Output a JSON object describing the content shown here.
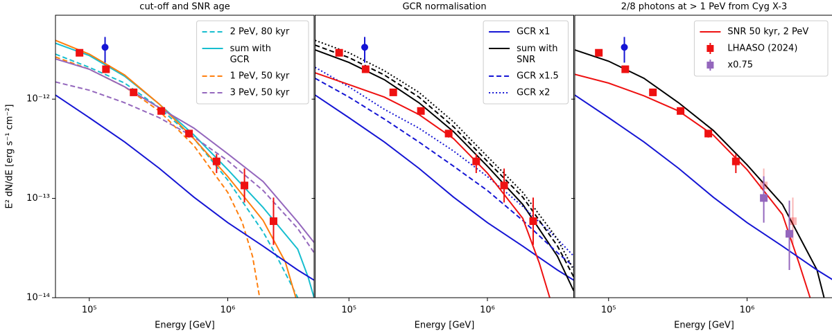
{
  "chart_data": [
    {
      "type": "line",
      "title": "cut-off and SNR age",
      "xlabel": "Energy [GeV]",
      "ylabel": "E² dN/dE [erg s⁻¹ cm⁻²]",
      "xlog": true,
      "ylog": true,
      "xlim": [
        57000,
        4200000
      ],
      "ylim": [
        1e-14,
        7e-12
      ],
      "xticks": [
        {
          "value": 100000,
          "label": "10⁵"
        },
        {
          "value": 1000000,
          "label": "10⁶"
        }
      ],
      "yticks": [
        {
          "value": 1e-14,
          "label": "10⁻¹⁴"
        },
        {
          "value": 1e-13,
          "label": "10⁻¹³"
        },
        {
          "value": 1e-12,
          "label": "10⁻¹²"
        }
      ],
      "legend": "upper right",
      "series": [
        {
          "name": "2 PeV, 80 kyr",
          "color": "#17becf",
          "style": "dashed",
          "x": [
            57000,
            100000,
            180000,
            320000,
            570000,
            1000000,
            1800000,
            2260000,
            2850000,
            3200000
          ],
          "values": [
            2.84e-12,
            2.09e-12,
            1.45e-12,
            8.2e-13,
            4e-13,
            1.53e-13,
            4.6e-14,
            2.6e-14,
            1.38e-14,
            1e-14
          ]
        },
        {
          "name": "sum with\nGCR",
          "color": "#17becf",
          "style": "solid",
          "x": [
            57000,
            100000,
            180000,
            320000,
            570000,
            1000000,
            1800000,
            3200000,
            3800000,
            4200000
          ],
          "values": [
            3.66e-12,
            2.75e-12,
            1.7e-12,
            8.9e-13,
            4.35e-13,
            1.95e-13,
            8.1e-14,
            3.08e-14,
            1.62e-14,
            1e-14
          ]
        },
        {
          "name": "1 PeV, 50 kyr",
          "color": "#ff7f0e",
          "style": "dashed",
          "x": [
            57000,
            100000,
            180000,
            320000,
            570000,
            1000000,
            1270000,
            1510000,
            1700000
          ],
          "values": [
            2.66e-12,
            2e-12,
            1.33e-12,
            7.6e-13,
            3.4e-13,
            1.15e-13,
            5.8e-14,
            2.6e-14,
            1e-14
          ]
        },
        {
          "name": "3 PeV, 50 kyr",
          "color": "#9467bd",
          "style": "dashed",
          "x": [
            57000,
            100000,
            180000,
            320000,
            570000,
            1000000,
            1800000,
            3200000,
            4200000
          ],
          "values": [
            1.49e-12,
            1.23e-12,
            9.2e-13,
            6.5e-13,
            4.14e-13,
            2.4e-13,
            1.2e-13,
            4.97e-14,
            2.84e-14
          ]
        },
        {
          "color": "#ff7f0e",
          "style": "solid",
          "x": [
            57000,
            100000,
            180000,
            320000,
            570000,
            1000000,
            1800000,
            2600000,
            3100000
          ],
          "values": [
            3.91e-12,
            2.84e-12,
            1.75e-12,
            8.9e-13,
            4e-13,
            1.66e-13,
            6e-14,
            2.3e-14,
            1e-14
          ]
        },
        {
          "color": "#9467bd",
          "style": "solid",
          "x": [
            57000,
            100000,
            180000,
            320000,
            570000,
            1000000,
            1800000,
            3200000,
            4200000
          ],
          "values": [
            2.54e-12,
            2e-12,
            1.33e-12,
            8.2e-13,
            5.1e-13,
            2.81e-13,
            1.48e-13,
            5.8e-14,
            3.6e-14
          ]
        },
        {
          "color": "#1515d4",
          "style": "solid",
          "x": [
            57000,
            100000,
            180000,
            320000,
            570000,
            1000000,
            1800000,
            3200000,
            4200000
          ],
          "values": [
            1.1e-12,
            6.5e-13,
            3.7e-13,
            2.01e-13,
            1.03e-13,
            5.7e-14,
            3.3e-14,
            1.9e-14,
            1.5e-14
          ]
        }
      ],
      "points": [
        {
          "color": "#ee1111",
          "marker": "square",
          "x": [
            85000,
            132000,
            209000,
            331000,
            525000,
            830000,
            1320000,
            2140000
          ],
          "values": [
            2.93e-12,
            2e-12,
            1.17e-12,
            7.6e-13,
            4.5e-13,
            2.36e-13,
            1.35e-13,
            5.9e-14
          ],
          "errors_low": [
            1.5e-13,
            1e-13,
            6e-14,
            4e-14,
            4e-14,
            5.6e-14,
            4.4e-14,
            2.5e-14
          ],
          "errors_high": [
            1.5e-13,
            1e-13,
            6e-14,
            4e-14,
            4e-14,
            4.4e-14,
            6.5e-14,
            4.3e-14
          ]
        },
        {
          "color": "#1515d4",
          "marker": "circle",
          "x": [
            130000
          ],
          "values": [
            3.33e-12
          ],
          "errors_low": [
            1e-12
          ],
          "errors_high": [
            9e-13
          ]
        }
      ]
    },
    {
      "type": "line",
      "title": "GCR normalisation",
      "xlabel": "Energy [GeV]",
      "xlog": true,
      "ylog": true,
      "xlim": [
        57000,
        4200000
      ],
      "ylim": [
        1e-14,
        7e-12
      ],
      "xticks": [
        {
          "value": 100000,
          "label": "10⁵"
        },
        {
          "value": 1000000,
          "label": "10⁶"
        }
      ],
      "legend": "upper right",
      "series": [
        {
          "name": "GCR x1",
          "color": "#1515d4",
          "style": "solid",
          "x": [
            57000,
            100000,
            180000,
            320000,
            570000,
            1000000,
            1800000,
            3200000,
            4200000
          ],
          "values": [
            1.1e-12,
            6.5e-13,
            3.7e-13,
            2.01e-13,
            1.03e-13,
            5.7e-14,
            3.3e-14,
            1.9e-14,
            1.5e-14
          ]
        },
        {
          "name": "sum with\nSNR",
          "color": "#000000",
          "style": "solid",
          "x": [
            57000,
            100000,
            180000,
            320000,
            570000,
            1000000,
            1800000,
            3200000,
            4200000
          ],
          "values": [
            3.13e-12,
            2.34e-12,
            1.57e-12,
            9.2e-13,
            4.7e-13,
            2.11e-13,
            8.7e-14,
            2.62e-14,
            1.17e-14
          ]
        },
        {
          "name": "GCR x1.5",
          "color": "#1515d4",
          "style": "dashed",
          "x": [
            57000,
            100000,
            180000,
            320000,
            570000,
            1000000,
            1800000,
            3200000,
            4200000
          ],
          "values": [
            1.62e-12,
            1.05e-12,
            6.3e-13,
            3.7e-13,
            2.11e-13,
            1.2e-13,
            6e-14,
            2.84e-14,
            2.06e-14
          ]
        },
        {
          "name": "GCR x2",
          "color": "#1515d4",
          "style": "dotted",
          "x": [
            57000,
            100000,
            180000,
            320000,
            570000,
            1000000,
            1800000,
            3200000,
            4200000
          ],
          "values": [
            2.09e-12,
            1.33e-12,
            7.9e-13,
            5.1e-13,
            3e-13,
            1.66e-13,
            8.3e-14,
            3.9e-14,
            2.62e-14
          ]
        },
        {
          "color": "#000000",
          "style": "dashed",
          "x": [
            57000,
            100000,
            180000,
            320000,
            570000,
            1000000,
            1800000,
            3200000,
            4200000
          ],
          "values": [
            3.5e-12,
            2.62e-12,
            1.75e-12,
            1.05e-12,
            5.26e-13,
            2.36e-13,
            1.03e-13,
            3.33e-14,
            1.62e-14
          ]
        },
        {
          "color": "#000000",
          "style": "dotted",
          "x": [
            57000,
            100000,
            180000,
            320000,
            570000,
            1000000,
            1800000,
            3200000,
            4200000
          ],
          "values": [
            3.91e-12,
            2.93e-12,
            1.93e-12,
            1.17e-12,
            5.9e-13,
            2.64e-13,
            1.15e-13,
            3.9e-14,
            1.9e-14
          ]
        },
        {
          "color": "#ee1111",
          "style": "solid",
          "x": [
            57000,
            100000,
            180000,
            320000,
            570000,
            1000000,
            1800000,
            2370000,
            2820000
          ],
          "values": [
            1.84e-12,
            1.4e-12,
            1.05e-12,
            7e-13,
            4e-13,
            1.8e-13,
            6.3e-14,
            2.23e-14,
            1e-14
          ]
        }
      ],
      "points": [
        {
          "color": "#ee1111",
          "marker": "square",
          "x": [
            85000,
            132000,
            209000,
            331000,
            525000,
            830000,
            1320000,
            2140000
          ],
          "values": [
            2.93e-12,
            2e-12,
            1.17e-12,
            7.6e-13,
            4.5e-13,
            2.36e-13,
            1.35e-13,
            5.9e-14
          ],
          "errors_low": [
            1.5e-13,
            1e-13,
            6e-14,
            4e-14,
            4e-14,
            5.6e-14,
            4.4e-14,
            2.5e-14
          ],
          "errors_high": [
            1.5e-13,
            1e-13,
            6e-14,
            4e-14,
            4e-14,
            4.4e-14,
            6.5e-14,
            4.3e-14
          ]
        },
        {
          "color": "#1515d4",
          "marker": "circle",
          "x": [
            130000
          ],
          "values": [
            3.33e-12
          ],
          "errors_low": [
            1e-12
          ],
          "errors_high": [
            9e-13
          ]
        }
      ]
    },
    {
      "type": "line",
      "title": "2/8 photons at > 1 PeV from Cyg X-3",
      "xlabel": "Energy [GeV]",
      "xlog": true,
      "ylog": true,
      "xlim": [
        57000,
        4200000
      ],
      "ylim": [
        1e-14,
        7e-12
      ],
      "xticks": [
        {
          "value": 100000,
          "label": "10⁵"
        },
        {
          "value": 1000000,
          "label": "10⁶"
        }
      ],
      "legend": "upper right",
      "series": [
        {
          "name": "SNR 50 kyr, 2 PeV",
          "color": "#ee1111",
          "style": "solid",
          "x": [
            57000,
            100000,
            180000,
            320000,
            570000,
            1000000,
            1800000,
            2370000,
            2850000
          ],
          "values": [
            1.78e-12,
            1.45e-12,
            1.08e-12,
            7.6e-13,
            4.35e-13,
            1.95e-13,
            6.9e-14,
            2.23e-14,
            1e-14
          ]
        },
        {
          "color": "#000000",
          "style": "solid",
          "x": [
            57000,
            100000,
            180000,
            320000,
            570000,
            1000000,
            1800000,
            3200000,
            3600000
          ],
          "values": [
            3.13e-12,
            2.41e-12,
            1.62e-12,
            9.2e-13,
            4.85e-13,
            2.18e-13,
            8.7e-14,
            1.9e-14,
            1e-14
          ]
        },
        {
          "color": "#1515d4",
          "style": "solid",
          "x": [
            57000,
            100000,
            180000,
            320000,
            570000,
            1000000,
            1800000,
            3200000,
            4200000
          ],
          "values": [
            1.1e-12,
            6.5e-13,
            3.7e-13,
            2.01e-13,
            1.03e-13,
            5.7e-14,
            3.3e-14,
            1.9e-14,
            1.5e-14
          ]
        }
      ],
      "points": [
        {
          "name": "LHAASO (2024)",
          "color": "#ee1111",
          "marker": "square",
          "x": [
            85000,
            132000,
            209000,
            331000,
            525000,
            830000,
            1320000,
            2140000
          ],
          "values": [
            2.93e-12,
            2e-12,
            1.17e-12,
            7.6e-13,
            4.5e-13,
            2.36e-13,
            1.35e-13,
            5.9e-14
          ],
          "errors_low": [
            1.5e-13,
            1e-13,
            6e-14,
            4e-14,
            4e-14,
            5.6e-14,
            4.4e-14,
            2.5e-14
          ],
          "errors_high": [
            1.5e-13,
            1e-13,
            6e-14,
            4e-14,
            4e-14,
            4.4e-14,
            6.5e-14,
            4.3e-14
          ],
          "opacity": [
            1,
            1,
            1,
            1,
            1,
            1,
            0.3,
            0.3
          ]
        },
        {
          "name": "x0.75",
          "color": "#9467bd",
          "marker": "square",
          "x": [
            1320000,
            2020000
          ],
          "values": [
            1.01e-13,
            4.4e-14
          ],
          "errors_low": [
            4.4e-14,
            2.5e-14
          ],
          "errors_high": [
            6.6e-14,
            5.1e-14
          ]
        },
        {
          "color": "#1515d4",
          "marker": "circle",
          "x": [
            130000
          ],
          "values": [
            3.33e-12
          ],
          "errors_low": [
            1e-12
          ],
          "errors_high": [
            9e-13
          ]
        }
      ]
    }
  ]
}
